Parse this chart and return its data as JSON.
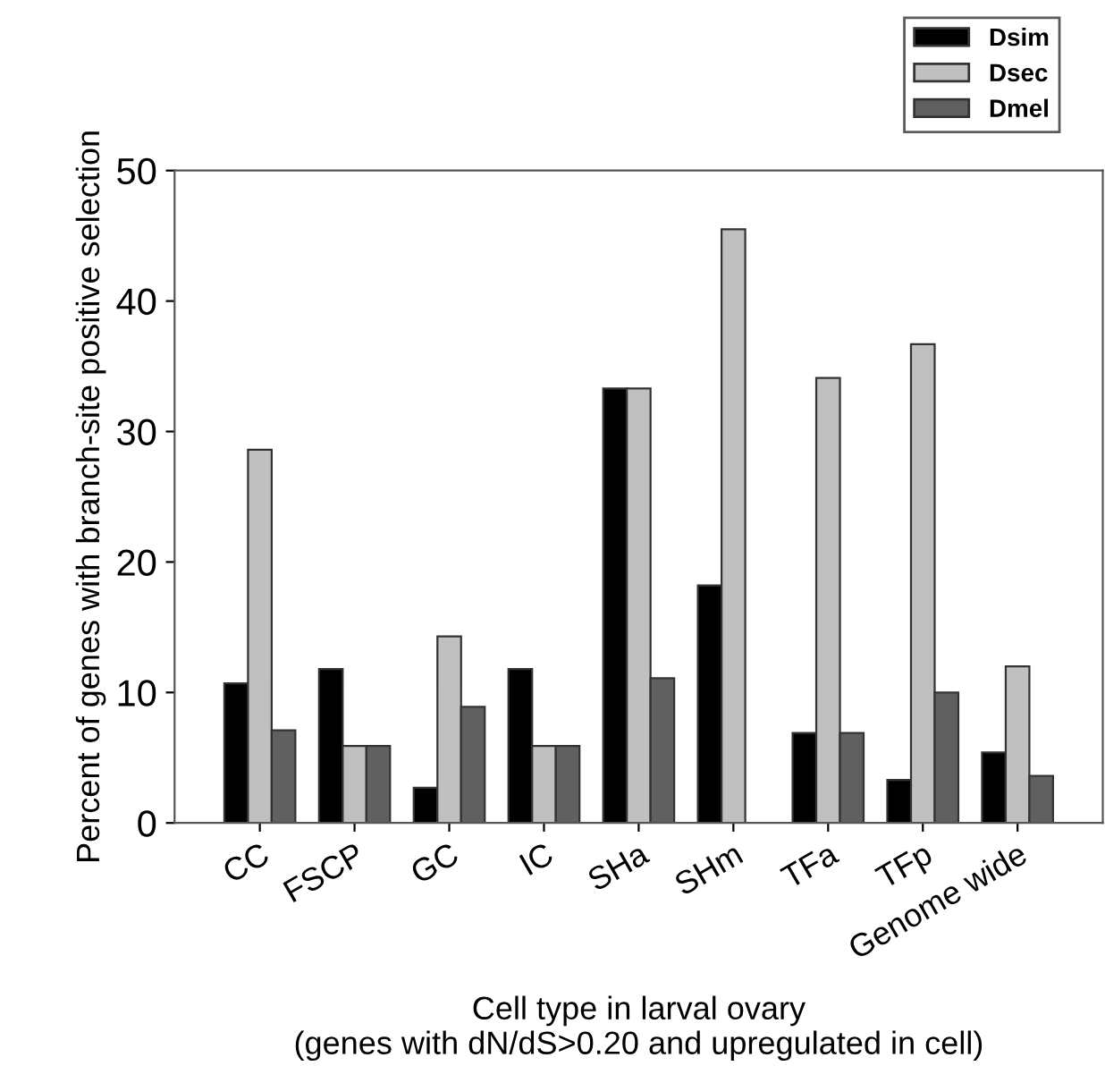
{
  "chart_data": {
    "type": "bar",
    "xlabel": "Cell type in larval ovary\n(genes with dN/dS>0.20 and upregulated in cell)",
    "ylabel": "Percent of genes with branch-site positive selection",
    "categories": [
      "CC",
      "FSCP",
      "GC",
      "IC",
      "SHa",
      "SHm",
      "TFa",
      "TFp",
      "Genome wide"
    ],
    "series": [
      {
        "name": "Dsim",
        "color": "#000000",
        "values": [
          10.7,
          11.8,
          2.7,
          11.8,
          33.3,
          18.2,
          6.9,
          3.3,
          5.4
        ]
      },
      {
        "name": "Dsec",
        "color": "#c0c0c0",
        "values": [
          28.6,
          5.9,
          14.3,
          5.9,
          33.3,
          45.5,
          34.1,
          36.7,
          12.0
        ]
      },
      {
        "name": "Dmel",
        "color": "#606060",
        "values": [
          7.1,
          5.9,
          8.9,
          5.9,
          11.1,
          null,
          6.9,
          10.0,
          3.6
        ]
      }
    ],
    "ylim": [
      0,
      50
    ],
    "yticks": [
      0,
      10,
      20,
      30,
      40,
      50
    ],
    "legend": "top right",
    "grid": false
  }
}
